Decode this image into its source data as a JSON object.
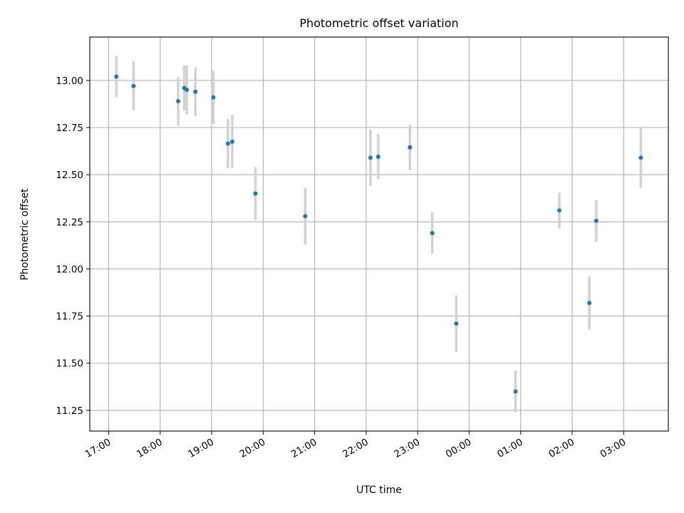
{
  "chart_data": {
    "type": "scatter",
    "title": "Photometric offset variation",
    "xlabel": "UTC time",
    "ylabel": "Photometric offset",
    "x_axis": {
      "start": "17:00",
      "range": [
        "16:38",
        "03:52"
      ],
      "ticks": [
        "17:00",
        "18:00",
        "19:00",
        "20:00",
        "21:00",
        "22:00",
        "23:00",
        "00:00",
        "01:00",
        "02:00",
        "03:00"
      ]
    },
    "y_axis": {
      "range": [
        11.14,
        13.23
      ],
      "ticks": [
        "11.25",
        "11.50",
        "11.75",
        "12.00",
        "12.25",
        "12.50",
        "12.75",
        "13.00"
      ]
    },
    "grid": true,
    "colors": {
      "point": "#1f77b4",
      "errorbar": "#d3d3d3",
      "grid": "#b0b0b0"
    },
    "points": [
      {
        "x": "17:09",
        "y": 13.02,
        "err": 0.11
      },
      {
        "x": "17:29",
        "y": 12.97,
        "err": 0.13
      },
      {
        "x": "18:21",
        "y": 12.89,
        "err": 0.13
      },
      {
        "x": "18:28",
        "y": 12.96,
        "err": 0.12
      },
      {
        "x": "18:31",
        "y": 12.95,
        "err": 0.13
      },
      {
        "x": "18:41",
        "y": 12.94,
        "err": 0.13
      },
      {
        "x": "19:02",
        "y": 12.91,
        "err": 0.14
      },
      {
        "x": "19:19",
        "y": 12.665,
        "err": 0.13
      },
      {
        "x": "19:24",
        "y": 12.675,
        "err": 0.14
      },
      {
        "x": "19:51",
        "y": 12.4,
        "err": 0.14
      },
      {
        "x": "20:49",
        "y": 12.28,
        "err": 0.15
      },
      {
        "x": "22:05",
        "y": 12.59,
        "err": 0.15
      },
      {
        "x": "22:14",
        "y": 12.595,
        "err": 0.12
      },
      {
        "x": "22:51",
        "y": 12.645,
        "err": 0.12
      },
      {
        "x": "23:17",
        "y": 12.19,
        "err": 0.11
      },
      {
        "x": "23:45",
        "y": 11.71,
        "err": 0.15
      },
      {
        "x": "00:54",
        "y": 11.35,
        "err": 0.11
      },
      {
        "x": "01:45",
        "y": 12.31,
        "err": 0.095
      },
      {
        "x": "02:20",
        "y": 11.82,
        "err": 0.14
      },
      {
        "x": "02:28",
        "y": 12.255,
        "err": 0.11
      },
      {
        "x": "03:20",
        "y": 12.59,
        "err": 0.16
      }
    ]
  }
}
